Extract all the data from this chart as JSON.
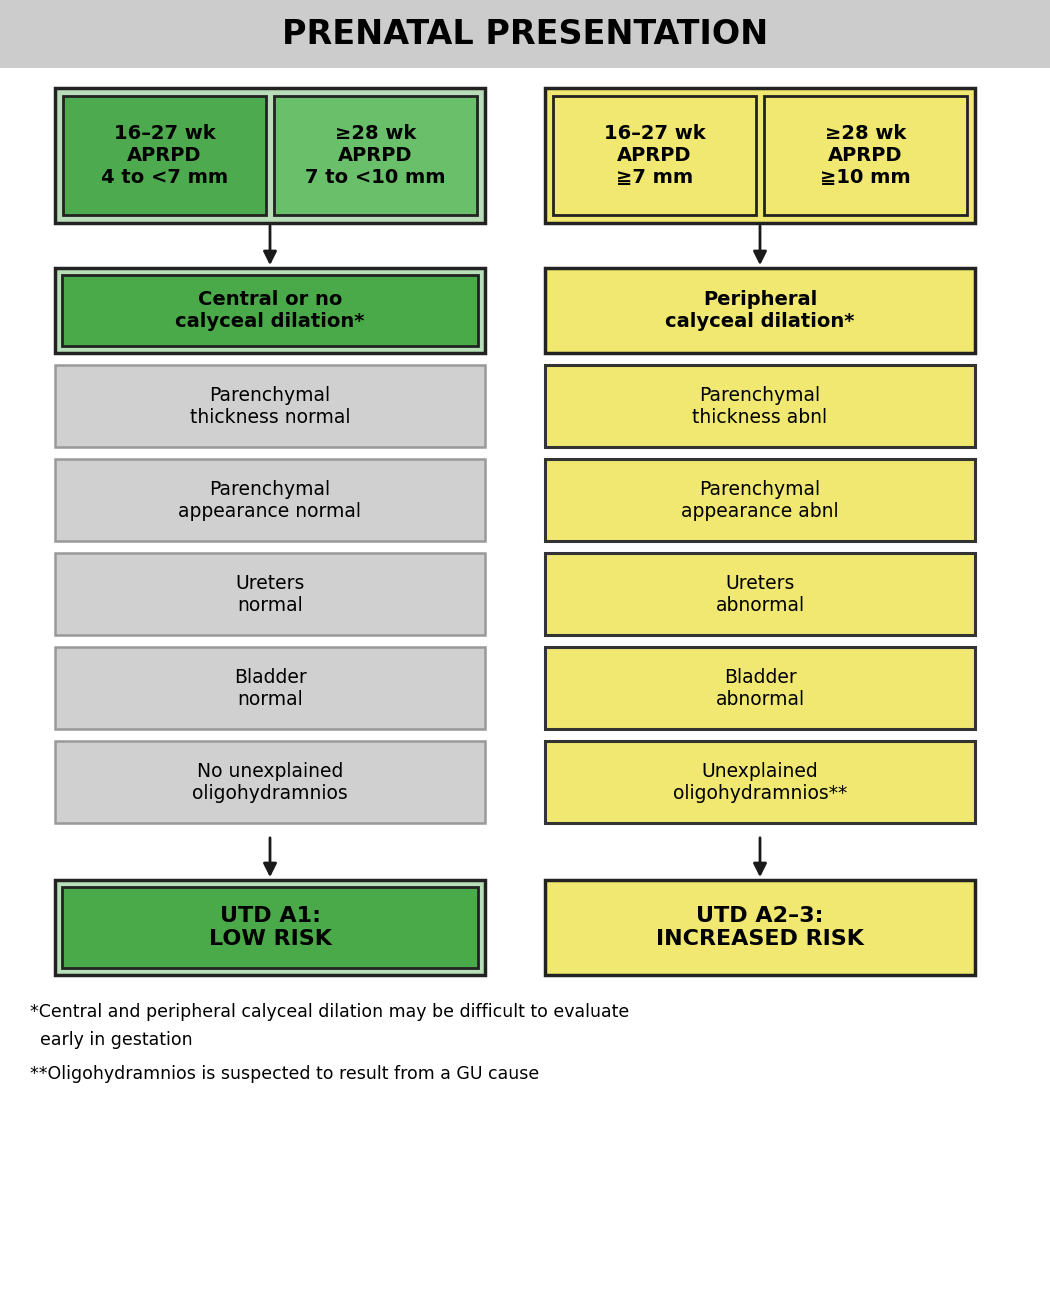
{
  "title": "PRENATAL PRESENTATION",
  "bg_color": "#ffffff",
  "title_bg": "#cccccc",
  "left_top_cells": [
    {
      "text": "16–27 wk\nAPRPD\n4 to <7 mm",
      "bg": "#5aad5a",
      "top_bg": "#a8d8a8"
    },
    {
      "text": "≥28 wk\nAPRPD\n7 to <10 mm",
      "bg": "#6abf6a",
      "top_bg": "#a8d8a8"
    }
  ],
  "right_top_cells": [
    {
      "text": "16–27 wk\nAPRPD\n≧7 mm",
      "bg": "#f0e870",
      "top_bg": "#f0e870"
    },
    {
      "text": "≥28 wk\nAPRPD\n≧10 mm",
      "bg": "#f0e870",
      "top_bg": "#f0e870"
    }
  ],
  "left_calyceal_text": "Central or no\ncalyceal dilation*",
  "left_calyceal_inner_bg": "#4aaa4a",
  "left_calyceal_outer_bg": "#b8e0b8",
  "right_calyceal_text": "Peripheral\ncalyceal dilation*",
  "right_calyceal_bg": "#f0e870",
  "left_boxes": [
    "Parenchymal\nthickness normal",
    "Parenchymal\nappearance normal",
    "Ureters\nnormal",
    "Bladder\nnormal",
    "No unexplained\noligohydramnios"
  ],
  "left_box_bg": "#d0d0d0",
  "left_box_edge": "#999999",
  "right_boxes": [
    "Parenchymal\nthickness abnl",
    "Parenchymal\nappearance abnl",
    "Ureters\nabnormal",
    "Bladder\nabnormal",
    "Unexplained\noligohydramnios**"
  ],
  "right_box_bg": "#f0e870",
  "right_box_edge": "#333333",
  "left_result_text": "UTD A1:\nLOW RISK",
  "left_result_inner_bg": "#4aaa4a",
  "left_result_outer_bg": "#b8e0b8",
  "right_result_text": "UTD A2–3:\nINCREASED RISK",
  "right_result_bg": "#f0e870",
  "footnote1": "*Central and peripheral calyceal dilation may be difficult to evaluate",
  "footnote2": " early in gestation",
  "footnote3": "**Oligohydramnios is suspected to result from a GU cause",
  "edge_dark": "#222222",
  "arrow_color": "#1a1a1a"
}
